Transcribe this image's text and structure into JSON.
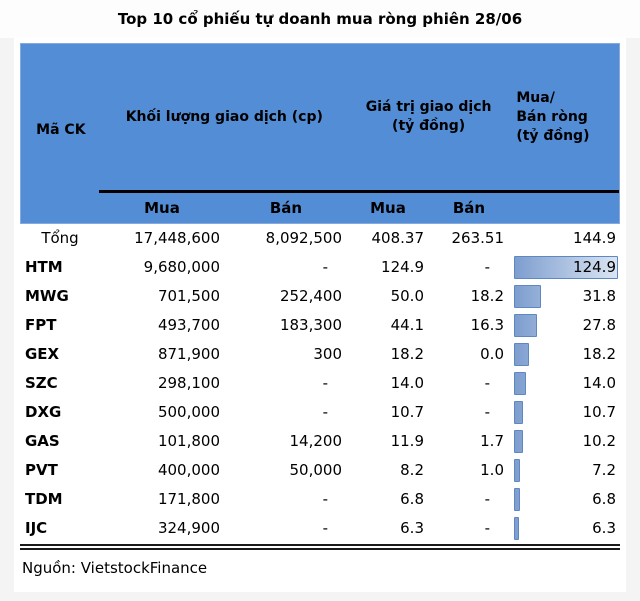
{
  "title": "Top 10 cổ phiếu tự doanh mua ròng phiên 28/06",
  "header": {
    "ma_ck": "Mã CK",
    "khoi_luong": "Khối lượng giao dịch (cp)",
    "gia_tri": "Giá trị giao dịch (tỷ đồng)",
    "net_line1": "Mua/",
    "net_line2": "Bán ròng",
    "net_line3": "(tỷ đồng)",
    "sub": {
      "kl_mua": "Mua",
      "kl_ban": "Bán",
      "gt_mua": "Mua",
      "gt_ban": "Bán"
    }
  },
  "chart_data": {
    "type": "table",
    "title": "Top 10 cổ phiếu tự doanh mua ròng phiên 28/06",
    "column_groups": [
      "Mã CK",
      "Khối lượng giao dịch (cp)",
      "Giá trị giao dịch (tỷ đồng)",
      "Mua/Bán ròng (tỷ đồng)"
    ],
    "sub_columns": [
      "Mua",
      "Bán",
      "Mua",
      "Bán"
    ],
    "databar": {
      "column": "Mua/Bán ròng (tỷ đồng)",
      "max": 124.9,
      "style": "gradient-blue"
    },
    "rows": [
      {
        "code": "Tổng",
        "is_total": true,
        "vol_buy": "17,448,600",
        "vol_sell": "8,092,500",
        "val_buy": "408.37",
        "val_sell": "263.51",
        "net": "144.9",
        "net_value": 144.9,
        "bar_pct": 0
      },
      {
        "code": "HTM",
        "is_total": false,
        "vol_buy": "9,680,000",
        "vol_sell": "-",
        "val_buy": "124.9",
        "val_sell": "-",
        "net": "124.9",
        "net_value": 124.9,
        "bar_pct": 100
      },
      {
        "code": "MWG",
        "is_total": false,
        "vol_buy": "701,500",
        "vol_sell": "252,400",
        "val_buy": "50.0",
        "val_sell": "18.2",
        "net": "31.8",
        "net_value": 31.8,
        "bar_pct": 25.5
      },
      {
        "code": "FPT",
        "is_total": false,
        "vol_buy": "493,700",
        "vol_sell": "183,300",
        "val_buy": "44.1",
        "val_sell": "16.3",
        "net": "27.8",
        "net_value": 27.8,
        "bar_pct": 22.3
      },
      {
        "code": "GEX",
        "is_total": false,
        "vol_buy": "871,900",
        "vol_sell": "300",
        "val_buy": "18.2",
        "val_sell": "0.0",
        "net": "18.2",
        "net_value": 18.2,
        "bar_pct": 14.6
      },
      {
        "code": "SZC",
        "is_total": false,
        "vol_buy": "298,100",
        "vol_sell": "-",
        "val_buy": "14.0",
        "val_sell": "-",
        "net": "14.0",
        "net_value": 14.0,
        "bar_pct": 11.2
      },
      {
        "code": "DXG",
        "is_total": false,
        "vol_buy": "500,000",
        "vol_sell": "-",
        "val_buy": "10.7",
        "val_sell": "-",
        "net": "10.7",
        "net_value": 10.7,
        "bar_pct": 8.6
      },
      {
        "code": "GAS",
        "is_total": false,
        "vol_buy": "101,800",
        "vol_sell": "14,200",
        "val_buy": "11.9",
        "val_sell": "1.7",
        "net": "10.2",
        "net_value": 10.2,
        "bar_pct": 8.2
      },
      {
        "code": "PVT",
        "is_total": false,
        "vol_buy": "400,000",
        "vol_sell": "50,000",
        "val_buy": "8.2",
        "val_sell": "1.0",
        "net": "7.2",
        "net_value": 7.2,
        "bar_pct": 5.8
      },
      {
        "code": "TDM",
        "is_total": false,
        "vol_buy": "171,800",
        "vol_sell": "-",
        "val_buy": "6.8",
        "val_sell": "-",
        "net": "6.8",
        "net_value": 6.8,
        "bar_pct": 5.4
      },
      {
        "code": "IJC",
        "is_total": false,
        "vol_buy": "324,900",
        "vol_sell": "-",
        "val_buy": "6.3",
        "val_sell": "-",
        "net": "6.3",
        "net_value": 6.3,
        "bar_pct": 5.0
      }
    ]
  },
  "footer": {
    "source": "Nguồn: VietstockFinance"
  },
  "colors": {
    "header_bg": "#538dd5",
    "page_gray": "#f4f4f4",
    "bar_border": "#5e88c2",
    "bar_grad_1": "#7e9ecf",
    "bar_grad_2": "#dbe5f3",
    "text": "#000000"
  }
}
